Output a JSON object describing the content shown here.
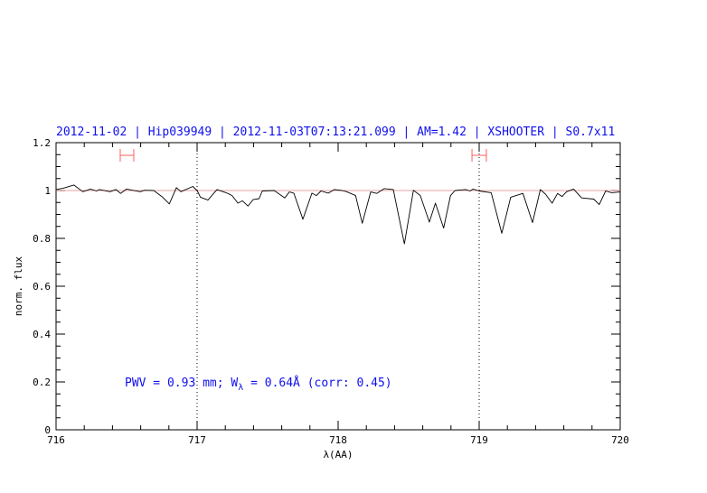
{
  "chart_data": {
    "type": "line",
    "title": "2012-11-02 | Hip039949 | 2012-11-03T07:13:21.099 | AM=1.42 | XSHOOTER | S0.7x11",
    "xlabel": "λ(AA)",
    "ylabel": "norm. flux",
    "xlim": [
      716,
      720
    ],
    "ylim": [
      0,
      1.2
    ],
    "xticks": [
      "716",
      "717",
      "718",
      "719",
      "720"
    ],
    "yticks": [
      "0",
      "0.2",
      "0.4",
      "0.6",
      "0.8",
      "1",
      "1.2"
    ],
    "grid": false,
    "reference_line": {
      "y": 1.0,
      "color": "#e08080"
    },
    "vertical_dotted_lines": [
      717,
      719
    ],
    "continuum_windows": [
      [
        716.455,
        716.551
      ],
      [
        718.949,
        719.051
      ]
    ],
    "window_marker_flux": 1.147,
    "window_color": "#ff6060",
    "annotation": {
      "pwv": "PWV = 0.93 mm; W",
      "sub": "λ",
      "rest": " = 0.64Å (corr: 0.45)"
    },
    "text_color": "#1010ee",
    "series": [
      {
        "color": "#000000",
        "x": [
          716.0,
          716.051,
          716.126,
          716.19,
          716.244,
          716.287,
          716.308,
          716.383,
          716.425,
          716.457,
          716.5,
          716.596,
          716.628,
          716.692,
          716.756,
          716.803,
          716.853,
          716.885,
          716.97,
          717.002,
          717.024,
          717.077,
          717.141,
          717.205,
          717.248,
          717.29,
          717.322,
          717.361,
          717.397,
          717.44,
          717.462,
          717.547,
          717.622,
          717.654,
          717.686,
          717.75,
          717.814,
          717.846,
          717.878,
          717.931,
          717.974,
          718.028,
          718.06,
          718.124,
          718.171,
          718.231,
          718.274,
          718.327,
          718.391,
          718.47,
          718.534,
          718.583,
          718.647,
          718.69,
          718.748,
          718.797,
          718.829,
          718.904,
          718.936,
          718.957,
          719.0,
          719.085,
          719.16,
          719.224,
          719.31,
          719.378,
          719.434,
          719.47,
          719.517,
          719.556,
          719.588,
          719.62,
          719.669,
          719.726,
          719.812,
          719.851,
          719.897,
          719.94,
          720.0
        ],
        "y": [
          1.004,
          1.01,
          1.023,
          0.995,
          1.006,
          0.998,
          1.004,
          0.995,
          1.004,
          0.988,
          1.006,
          0.995,
          1.001,
          1.0,
          0.972,
          0.944,
          1.012,
          0.995,
          1.017,
          0.998,
          0.972,
          0.96,
          1.004,
          0.991,
          0.979,
          0.947,
          0.957,
          0.935,
          0.962,
          0.966,
          0.998,
          1.0,
          0.969,
          0.994,
          0.989,
          0.88,
          0.989,
          0.979,
          0.998,
          0.989,
          1.004,
          1.0,
          0.995,
          0.979,
          0.863,
          0.994,
          0.988,
          1.008,
          1.004,
          0.777,
          1.001,
          0.979,
          0.868,
          0.947,
          0.843,
          0.979,
          1.0,
          1.004,
          0.998,
          1.006,
          0.998,
          0.991,
          0.821,
          0.972,
          0.988,
          0.866,
          1.004,
          0.985,
          0.947,
          0.988,
          0.975,
          0.995,
          1.006,
          0.969,
          0.964,
          0.941,
          0.998,
          0.991,
          0.994
        ]
      }
    ]
  }
}
